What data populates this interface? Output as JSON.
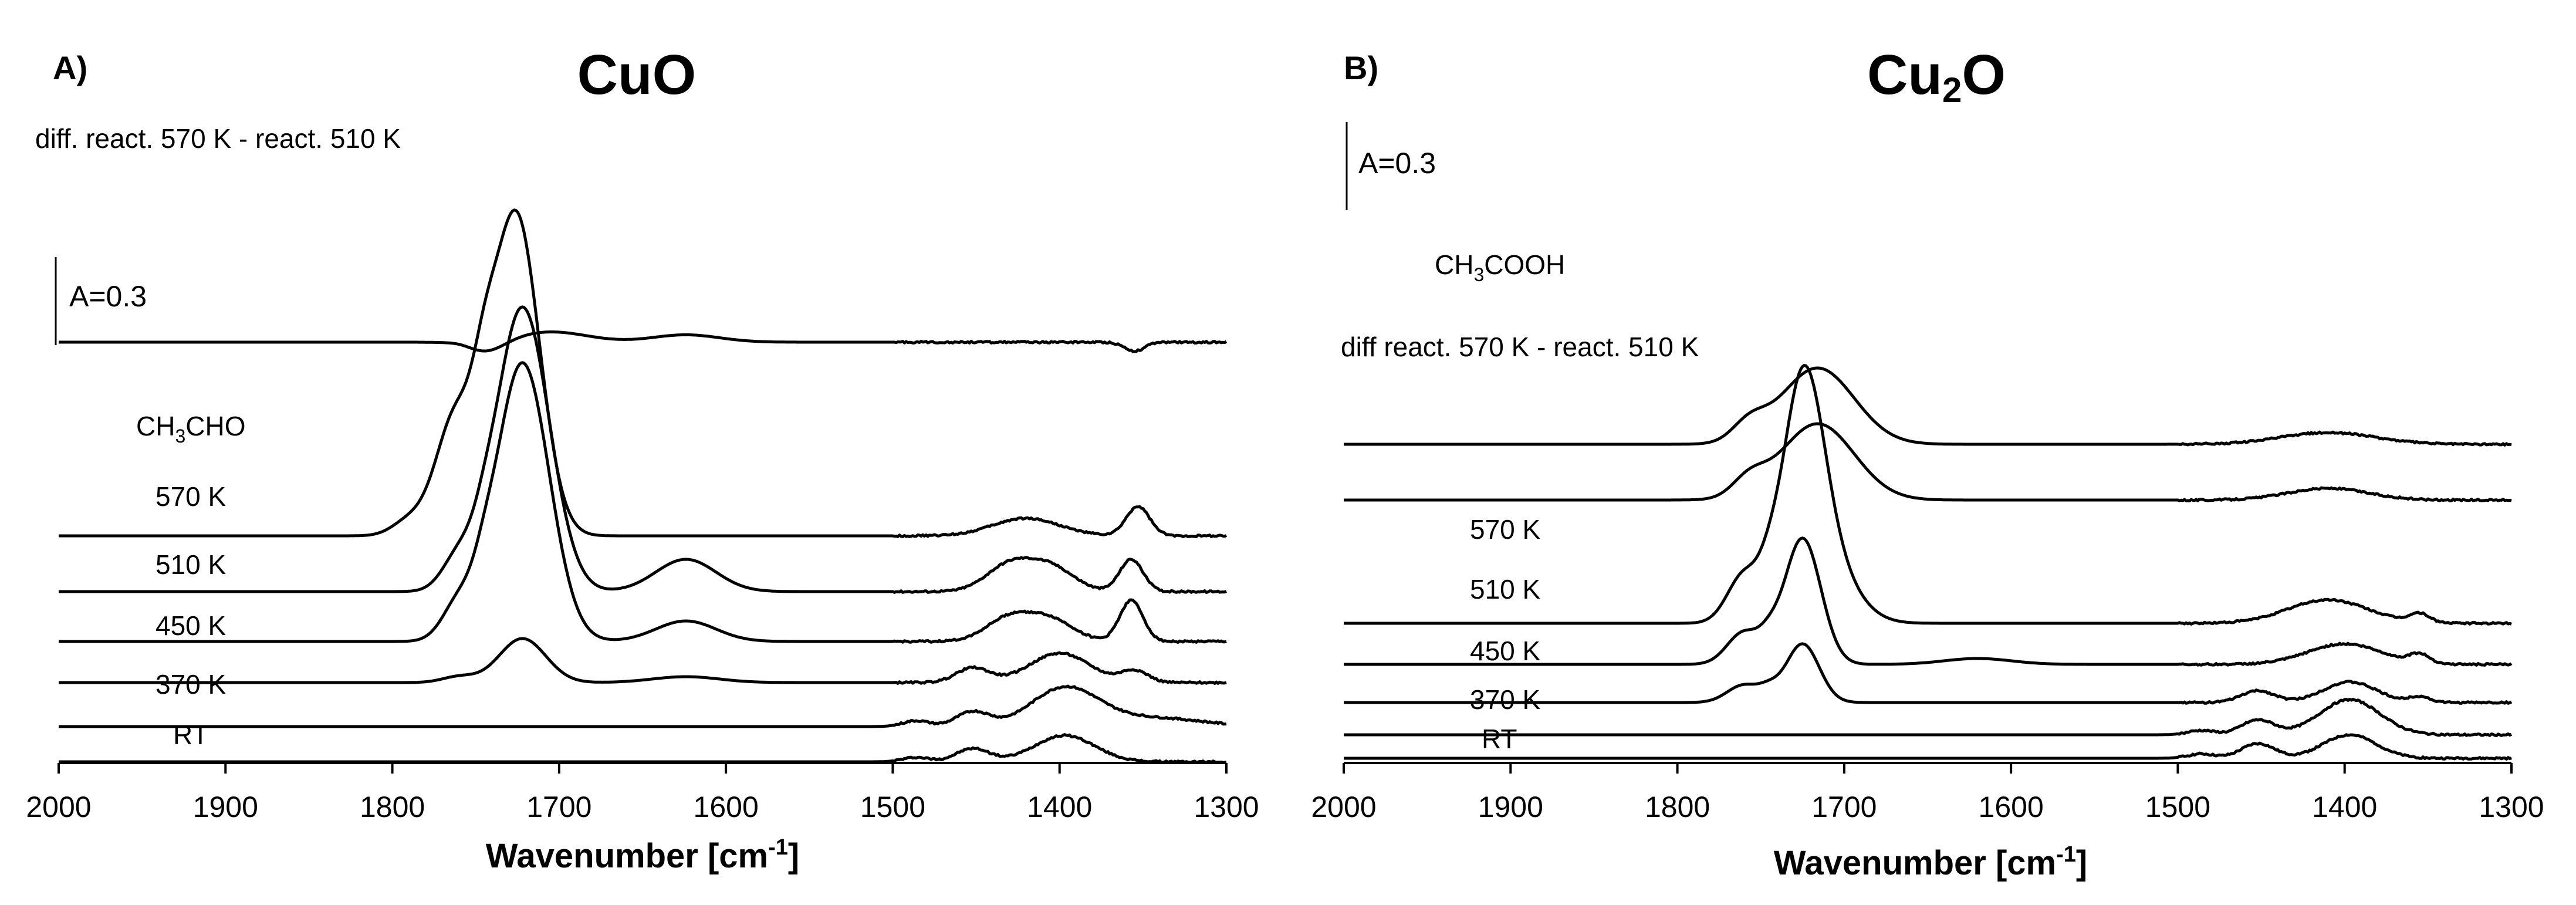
{
  "chart_data": [
    {
      "type": "line",
      "panel": "A)",
      "title": "CuO",
      "xlabel": "Wavenumber [cm-1]",
      "xlabel_text": "Wavenumber [cm",
      "xlabel_sup": "-1",
      "xlabel_end": "]",
      "xlim": [
        2000,
        1300
      ],
      "xticks": [
        2000,
        1900,
        1800,
        1700,
        1600,
        1500,
        1400,
        1300
      ],
      "scale_bar": {
        "label": "A=0.3",
        "absorbance": 0.3
      },
      "series": [
        {
          "name": "RT",
          "label": "RT",
          "baseline_abs": 0.0,
          "peaks": [
            [
              1452,
              0.045,
              10
            ],
            [
              1397,
              0.09,
              18
            ],
            [
              1486,
              0.015,
              8
            ]
          ]
        },
        {
          "name": "370 K",
          "label": "370 K",
          "baseline_abs": 0.12,
          "peaks": [
            [
              1452,
              0.05,
              10
            ],
            [
              1397,
              0.13,
              20
            ],
            [
              1486,
              0.02,
              8
            ],
            [
              1345,
              0.03,
              30
            ]
          ]
        },
        {
          "name": "450 K",
          "label": "450 K",
          "baseline_abs": 0.27,
          "peaks": [
            [
              1722,
              0.15,
              14
            ],
            [
              1760,
              0.02,
              10
            ],
            [
              1624,
              0.02,
              20
            ],
            [
              1452,
              0.05,
              10
            ],
            [
              1400,
              0.1,
              18
            ],
            [
              1355,
              0.04,
              8
            ]
          ]
        },
        {
          "name": "510 K",
          "label": "510 K",
          "baseline_abs": 0.41,
          "peaks": [
            [
              1722,
              0.95,
              16
            ],
            [
              1760,
              0.12,
              10
            ],
            [
              1745,
              0.06,
              6
            ],
            [
              1624,
              0.07,
              18
            ],
            [
              1430,
              0.08,
              14
            ],
            [
              1405,
              0.07,
              14
            ],
            [
              1357,
              0.14,
              7
            ]
          ]
        },
        {
          "name": "570 K",
          "label": "570 K",
          "baseline_abs": 0.58,
          "peaks": [
            [
              1722,
              0.97,
              16
            ],
            [
              1760,
              0.11,
              10
            ],
            [
              1745,
              0.05,
              6
            ],
            [
              1624,
              0.11,
              18
            ],
            [
              1430,
              0.09,
              14
            ],
            [
              1405,
              0.08,
              14
            ],
            [
              1357,
              0.11,
              7
            ]
          ]
        },
        {
          "name": "CH3CHO",
          "label": "CH",
          "label_sub": "3",
          "label_end": "CHO",
          "baseline_abs": 0.77,
          "peaks": [
            [
              1726,
              1.1,
              14
            ],
            [
              1762,
              0.4,
              12
            ],
            [
              1745,
              0.2,
              7
            ],
            [
              1790,
              0.05,
              10
            ],
            [
              1420,
              0.06,
              20
            ],
            [
              1353,
              0.1,
              7
            ]
          ]
        },
        {
          "name": "diff. react. 570 K - react. 510 K",
          "label": "diff. react. 570 K - react. 510 K",
          "baseline_abs": 1.43,
          "peaks": [
            [
              1745,
              -0.04,
              12
            ],
            [
              1705,
              0.035,
              22
            ],
            [
              1624,
              0.025,
              20
            ],
            [
              1757,
              0.01,
              8
            ],
            [
              1355,
              -0.03,
              6
            ]
          ]
        }
      ]
    },
    {
      "type": "line",
      "panel": "B)",
      "title": "Cu2O",
      "title_main": "Cu",
      "title_sub": "2",
      "title_end": "O",
      "xlabel": "Wavenumber [cm-1]",
      "xlabel_text": "Wavenumber [cm",
      "xlabel_sup": "-1",
      "xlabel_end": "]",
      "xlim": [
        2000,
        1300
      ],
      "xticks": [
        2000,
        1900,
        1800,
        1700,
        1600,
        1500,
        1400,
        1300
      ],
      "scale_bar": {
        "label": "A=0.3",
        "absorbance": 0.3
      },
      "series": [
        {
          "name": "RT",
          "label": "RT",
          "baseline_abs": 0.0,
          "peaks": [
            [
              1452,
              0.05,
              10
            ],
            [
              1397,
              0.08,
              16
            ],
            [
              1486,
              0.015,
              8
            ]
          ]
        },
        {
          "name": "370 K",
          "label": "370 K",
          "baseline_abs": 0.08,
          "peaks": [
            [
              1452,
              0.05,
              10
            ],
            [
              1397,
              0.12,
              18
            ],
            [
              1486,
              0.015,
              8
            ]
          ]
        },
        {
          "name": "450 K",
          "label": "450 K",
          "baseline_abs": 0.19,
          "peaks": [
            [
              1725,
              0.2,
              10
            ],
            [
              1760,
              0.06,
              10
            ],
            [
              1745,
              0.03,
              6
            ],
            [
              1452,
              0.04,
              10
            ],
            [
              1397,
              0.07,
              16
            ],
            [
              1355,
              0.02,
              6
            ]
          ]
        },
        {
          "name": "510 K",
          "label": "510 K",
          "baseline_abs": 0.32,
          "peaks": [
            [
              1725,
              0.43,
              11
            ],
            [
              1760,
              0.11,
              10
            ],
            [
              1745,
              0.05,
              6
            ],
            [
              1620,
              0.02,
              20
            ],
            [
              1400,
              0.07,
              22
            ],
            [
              1355,
              0.03,
              6
            ]
          ]
        },
        {
          "name": "570 K",
          "label": "570 K",
          "baseline_abs": 0.46,
          "peaks": [
            [
              1725,
              0.66,
              12
            ],
            [
              1715,
              0.25,
              18
            ],
            [
              1760,
              0.16,
              10
            ],
            [
              1745,
              0.06,
              6
            ],
            [
              1410,
              0.08,
              24
            ],
            [
              1355,
              0.03,
              6
            ]
          ]
        },
        {
          "name": "diff react. 570 K - react. 510 K",
          "label": "diff react. 570 K - react. 510 K",
          "baseline_abs": 0.88,
          "peaks": [
            [
              1716,
              0.26,
              22
            ],
            [
              1757,
              0.06,
              10
            ],
            [
              1410,
              0.04,
              24
            ]
          ]
        },
        {
          "name": "CH3COOH",
          "label": "CH",
          "label_sub": "3",
          "label_end": "COOH",
          "baseline_abs": 1.07,
          "peaks": [
            [
              1716,
              0.26,
              22
            ],
            [
              1757,
              0.06,
              10
            ],
            [
              1410,
              0.04,
              28
            ]
          ]
        }
      ]
    }
  ]
}
